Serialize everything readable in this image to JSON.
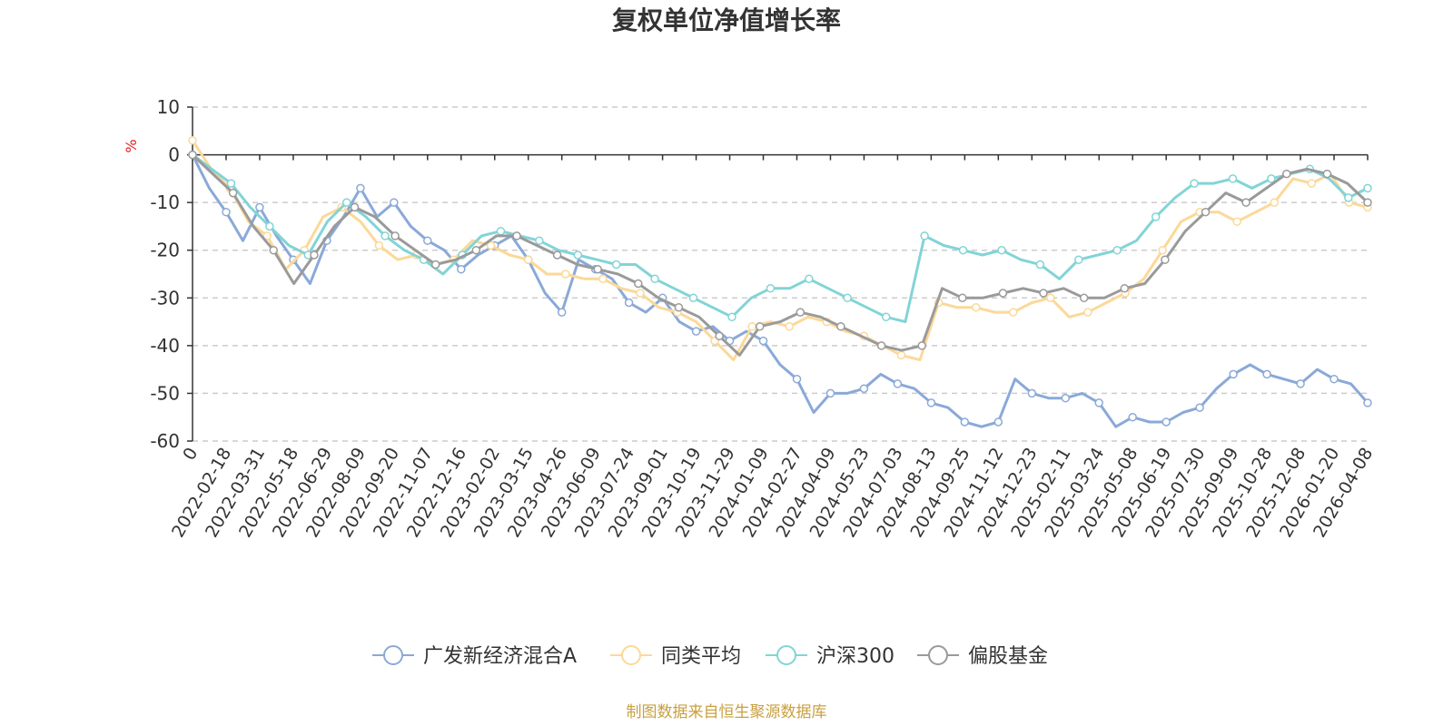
{
  "chart_data": {
    "type": "line",
    "title": "复权单位净值增长率",
    "ylabel": "%",
    "xlabel": "",
    "ylim": [
      -60,
      10
    ],
    "yticks": [
      10,
      0,
      -10,
      -20,
      -30,
      -40,
      -50,
      -60
    ],
    "grid": true,
    "legend_position": "bottom",
    "x_tick_labels": [
      "0",
      "2022-02-18",
      "2022-03-31",
      "2022-05-18",
      "2022-06-29",
      "2022-08-09",
      "2022-09-20",
      "2022-11-07",
      "2022-12-16",
      "2023-02-02",
      "2023-03-15",
      "2023-04-26",
      "2023-06-09",
      "2023-07-24",
      "2023-09-01",
      "2023-10-19",
      "2023-11-29",
      "2024-01-09",
      "2024-02-27",
      "2024-04-09",
      "2024-05-23",
      "2024-07-03",
      "2024-08-13",
      "2024-09-25",
      "2024-11-12",
      "2024-12-23",
      "2025-02-11",
      "2025-03-24",
      "2025-05-08",
      "2025-06-19",
      "2025-07-30",
      "2025-09-09",
      "2025-10-28",
      "2025-12-08",
      "2026-01-20",
      "2026-04-08"
    ],
    "series": [
      {
        "name": "广发新经济混合A",
        "color": "#8aa9d8",
        "values": [
          0,
          -7,
          -12,
          -18,
          -11,
          -17,
          -22,
          -27,
          -18,
          -13,
          -7,
          -13,
          -10,
          -15,
          -18,
          -20,
          -24,
          -21,
          -19,
          -17,
          -22,
          -29,
          -33,
          -22,
          -24,
          -26,
          -31,
          -33,
          -30,
          -35,
          -37,
          -36,
          -39,
          -37,
          -39,
          -44,
          -47,
          -54,
          -50,
          -50,
          -49,
          -46,
          -48,
          -49,
          -52,
          -53,
          -56,
          -57,
          -56,
          -47,
          -50,
          -51,
          -51,
          -50,
          -52,
          -57,
          -55,
          -56,
          -56,
          -54,
          -53,
          -49,
          -46,
          -44,
          -46,
          -47,
          -48,
          -45,
          -47,
          -48,
          -52
        ]
      },
      {
        "name": "同类平均",
        "color": "#fcd898",
        "values": [
          3,
          -3,
          -7,
          -14,
          -17,
          -24,
          -20,
          -13,
          -11,
          -14,
          -19,
          -22,
          -21,
          -23,
          -22,
          -18,
          -19,
          -21,
          -22,
          -25,
          -25,
          -26,
          -26,
          -28,
          -29,
          -32,
          -33,
          -35,
          -39,
          -43,
          -36,
          -35,
          -36,
          -34,
          -35,
          -37,
          -38,
          -40,
          -42,
          -43,
          -31,
          -32,
          -32,
          -33,
          -33,
          -31,
          -30,
          -34,
          -33,
          -31,
          -29,
          -26,
          -20,
          -14,
          -12,
          -12,
          -14,
          -12,
          -10,
          -5,
          -6,
          -4,
          -10,
          -11
        ]
      },
      {
        "name": "沪深300",
        "color": "#82d4d6",
        "values": [
          0,
          -3,
          -6,
          -11,
          -15,
          -19,
          -21,
          -14,
          -10,
          -13,
          -17,
          -20,
          -22,
          -25,
          -21,
          -17,
          -16,
          -17,
          -18,
          -20,
          -21,
          -22,
          -23,
          -23,
          -26,
          -28,
          -30,
          -32,
          -34,
          -30,
          -28,
          -28,
          -26,
          -28,
          -30,
          -32,
          -34,
          -35,
          -17,
          -19,
          -20,
          -21,
          -20,
          -22,
          -23,
          -26,
          -22,
          -21,
          -20,
          -18,
          -13,
          -9,
          -6,
          -6,
          -5,
          -7,
          -5,
          -4,
          -3,
          -5,
          -9,
          -7
        ]
      },
      {
        "name": "偏股基金",
        "color": "#9a9a9a",
        "values": [
          0,
          -4,
          -8,
          -15,
          -20,
          -27,
          -21,
          -15,
          -11,
          -13,
          -17,
          -20,
          -23,
          -22,
          -20,
          -17,
          -17,
          -19,
          -21,
          -23,
          -24,
          -25,
          -27,
          -30,
          -32,
          -34,
          -38,
          -42,
          -36,
          -35,
          -33,
          -34,
          -36,
          -38,
          -40,
          -41,
          -40,
          -28,
          -30,
          -30,
          -29,
          -28,
          -29,
          -28,
          -30,
          -30,
          -28,
          -27,
          -22,
          -16,
          -12,
          -8,
          -10,
          -7,
          -4,
          -3,
          -4,
          -6,
          -10
        ]
      }
    ]
  },
  "source_note": "制图数据来自恒生聚源数据库"
}
